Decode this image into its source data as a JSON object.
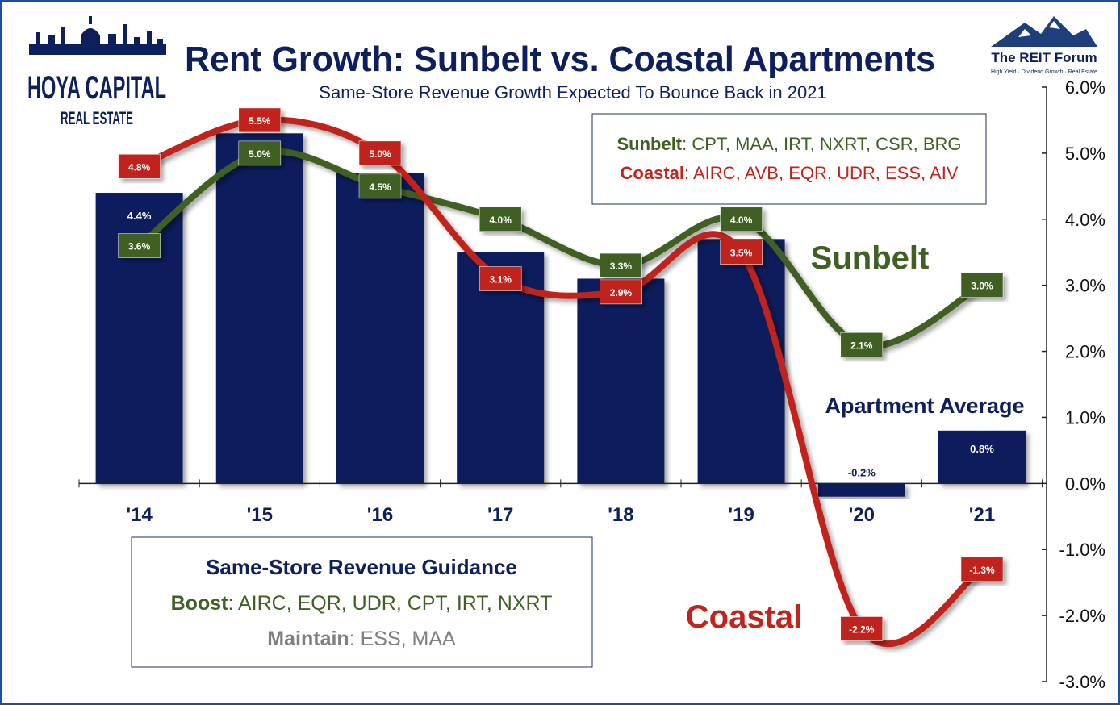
{
  "title": "Rent Growth: Sunbelt vs. Coastal Apartments",
  "subtitle": "Same-Store Revenue Growth Expected To Bounce Back in 2021",
  "logo_left": {
    "line1": "HOYA CAPITAL",
    "line2": "REAL ESTATE"
  },
  "logo_right": {
    "name": "The REIT Forum",
    "tagline": "High Yield · Dividend Growth · Real Estate"
  },
  "legend_box": {
    "sunbelt_label": "Sunbelt",
    "sunbelt_members": ": CPT, MAA, IRT, NXRT, CSR, BRG",
    "coastal_label": "Coastal",
    "coastal_members": ": AIRC, AVB, EQR, UDR, ESS, AIV"
  },
  "guidance_box": {
    "heading": "Same-Store Revenue Guidance",
    "boost_label": "Boost",
    "boost_members": ": AIRC, EQR, UDR, CPT, IRT, NXRT",
    "maintain_label": "Maintain",
    "maintain_members": ": ESS, MAA"
  },
  "annotations": {
    "sunbelt": "Sunbelt",
    "coastal": "Coastal",
    "apartment_average": "Apartment Average"
  },
  "colors": {
    "bar": "#0d1f5c",
    "sunbelt": "#3f5f23",
    "coastal": "#c0241b",
    "frame": "#1f4e9a",
    "maintain": "#7f7f7f"
  },
  "chart_data": {
    "type": "bar",
    "categories": [
      "'14",
      "'15",
      "'16",
      "'17",
      "'18",
      "'19",
      "'20",
      "'21"
    ],
    "ylim": [
      -3.0,
      6.0
    ],
    "yticks": [
      "6.0%",
      "5.0%",
      "4.0%",
      "3.0%",
      "2.0%",
      "1.0%",
      "0.0%",
      "-1.0%",
      "-2.0%",
      "-3.0%"
    ],
    "series": [
      {
        "name": "Apartment Average",
        "type": "bar",
        "values": [
          4.4,
          5.3,
          4.7,
          3.5,
          3.1,
          3.7,
          -0.2,
          0.8
        ],
        "labels": [
          "4.4%",
          "",
          "",
          "",
          "",
          "",
          "-0.2%",
          "0.8%"
        ]
      },
      {
        "name": "Sunbelt",
        "type": "line",
        "values": [
          3.6,
          5.0,
          4.5,
          4.0,
          3.3,
          4.0,
          2.1,
          3.0
        ],
        "labels": [
          "3.6%",
          "5.0%",
          "4.5%",
          "4.0%",
          "3.3%",
          "4.0%",
          "2.1%",
          "3.0%"
        ]
      },
      {
        "name": "Coastal",
        "type": "line",
        "values": [
          4.8,
          5.5,
          5.0,
          3.1,
          2.9,
          3.5,
          -2.2,
          -1.3
        ],
        "labels": [
          "4.8%",
          "5.5%",
          "5.0%",
          "3.1%",
          "2.9%",
          "3.5%",
          "-2.2%",
          "-1.3%"
        ]
      }
    ]
  }
}
